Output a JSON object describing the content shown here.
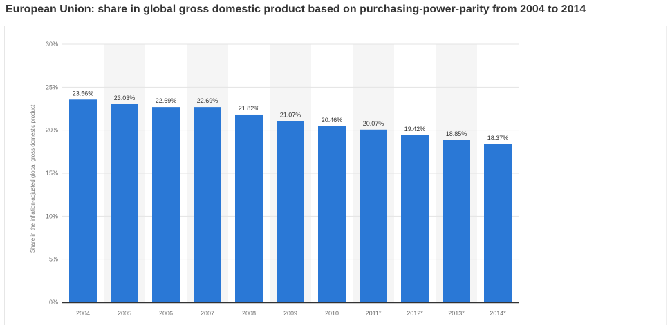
{
  "chart_data": {
    "type": "bar",
    "title": "European Union: share in global gross domestic product based on purchasing-power-parity from 2004 to 2014",
    "ylabel": "Share in the inflation-adjusted global gross domestic product",
    "xlabel": "",
    "categories": [
      "2004",
      "2005",
      "2006",
      "2007",
      "2008",
      "2009",
      "2010",
      "2011*",
      "2012*",
      "2013*",
      "2014*"
    ],
    "values": [
      23.56,
      23.03,
      22.69,
      22.69,
      21.82,
      21.07,
      20.46,
      20.07,
      19.42,
      18.85,
      18.37
    ],
    "value_labels": [
      "23.56%",
      "23.03%",
      "22.69%",
      "22.69%",
      "21.82%",
      "21.07%",
      "20.46%",
      "20.07%",
      "19.42%",
      "18.85%",
      "18.37%"
    ],
    "ylim": [
      0,
      30
    ],
    "yticks": [
      0,
      5,
      10,
      15,
      20,
      25,
      30
    ],
    "ytick_labels": [
      "0%",
      "5%",
      "10%",
      "15%",
      "20%",
      "25%",
      "30%"
    ],
    "bar_color": "#2a78d6",
    "grid": true,
    "legend": "none"
  }
}
